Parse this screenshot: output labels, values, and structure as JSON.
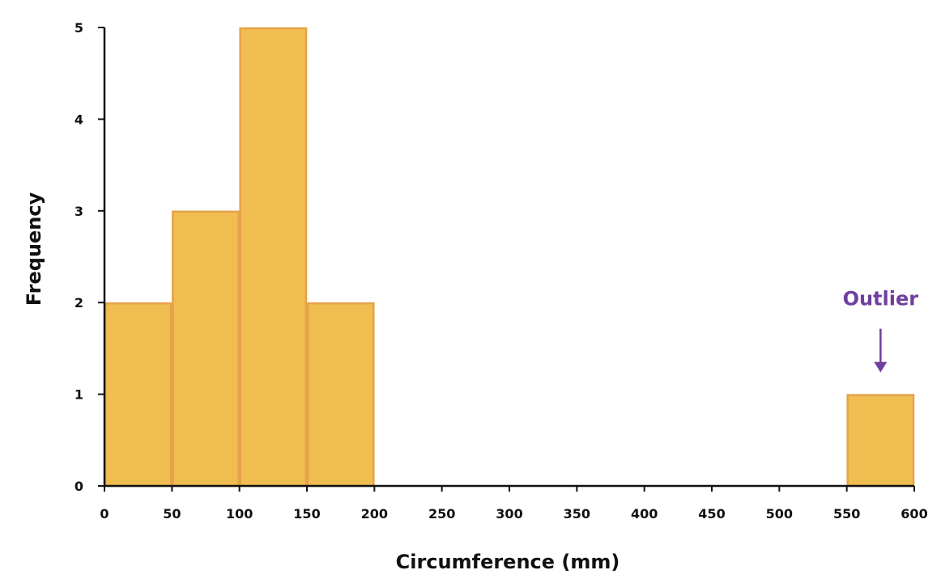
{
  "chart_data": {
    "type": "bar",
    "bins": [
      {
        "start": 0,
        "end": 50,
        "value": 2
      },
      {
        "start": 50,
        "end": 100,
        "value": 3
      },
      {
        "start": 100,
        "end": 150,
        "value": 5
      },
      {
        "start": 150,
        "end": 200,
        "value": 2
      },
      {
        "start": 200,
        "end": 250,
        "value": 0
      },
      {
        "start": 250,
        "end": 300,
        "value": 0
      },
      {
        "start": 300,
        "end": 350,
        "value": 0
      },
      {
        "start": 350,
        "end": 400,
        "value": 0
      },
      {
        "start": 400,
        "end": 450,
        "value": 0
      },
      {
        "start": 450,
        "end": 500,
        "value": 0
      },
      {
        "start": 500,
        "end": 550,
        "value": 0
      },
      {
        "start": 550,
        "end": 600,
        "value": 1
      }
    ],
    "xlabel": "Circumference (mm)",
    "ylabel": "Frequency",
    "xlim": [
      0,
      600
    ],
    "ylim": [
      0,
      5
    ],
    "x_ticks": [
      "0",
      "50",
      "100",
      "150",
      "200",
      "250",
      "300",
      "350",
      "400",
      "450",
      "500",
      "550",
      "600"
    ],
    "y_ticks": [
      "0",
      "1",
      "2",
      "3",
      "4",
      "5"
    ],
    "grid": false,
    "annotations": [
      {
        "text": "Outlier",
        "x": 575,
        "y": 1
      }
    ],
    "colors": {
      "bar_fill": "#f0bd50",
      "bar_stroke": "#e6a24a",
      "axis": "#111111",
      "annotation": "#6e3f9e"
    }
  }
}
